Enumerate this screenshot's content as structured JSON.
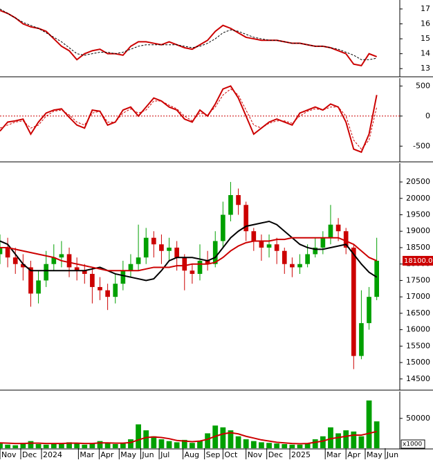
{
  "chart_data": [
    {
      "type": "line",
      "ylim": [
        12.5,
        17.6
      ],
      "yticks": [
        13,
        14,
        15,
        16,
        17
      ],
      "xlim": [
        0,
        52
      ],
      "series": [
        {
          "color": "#cc0000",
          "values": [
            16.9,
            16.7,
            16.4,
            16.0,
            15.8,
            15.7,
            15.5,
            15.0,
            14.5,
            14.2,
            13.6,
            14.0,
            14.2,
            14.3,
            14.0,
            14.0,
            13.9,
            14.5,
            14.8,
            14.8,
            14.7,
            14.6,
            14.8,
            14.6,
            14.4,
            14.3,
            14.6,
            14.9,
            15.5,
            15.9,
            15.7,
            15.4,
            15.1,
            15.0,
            14.9,
            14.9,
            14.9,
            14.8,
            14.7,
            14.7,
            14.6,
            14.5,
            14.5,
            14.4,
            14.2,
            14.0,
            13.3,
            13.2,
            14.0,
            13.8
          ]
        },
        {
          "color": "#000000",
          "dashed": true,
          "values": [
            17.0,
            16.7,
            16.4,
            16.1,
            15.9,
            15.7,
            15.4,
            15.1,
            14.8,
            14.4,
            14.0,
            13.9,
            14.0,
            14.1,
            14.1,
            14.0,
            14.1,
            14.3,
            14.5,
            14.6,
            14.6,
            14.6,
            14.6,
            14.6,
            14.5,
            14.4,
            14.5,
            14.7,
            15.0,
            15.4,
            15.6,
            15.5,
            15.3,
            15.1,
            15.0,
            14.9,
            14.9,
            14.8,
            14.7,
            14.7,
            14.6,
            14.5,
            14.5,
            14.4,
            14.3,
            14.1,
            13.9,
            13.6,
            13.6,
            13.7
          ]
        }
      ]
    },
    {
      "type": "line",
      "ylim": [
        -750,
        630
      ],
      "yticks": [
        -500,
        0,
        500
      ],
      "xlim": [
        0,
        52
      ],
      "hline": 0,
      "series": [
        {
          "color": "#cc0000",
          "values": [
            -250,
            -100,
            -80,
            -50,
            -300,
            -100,
            50,
            100,
            120,
            -20,
            -150,
            -200,
            100,
            80,
            -150,
            -100,
            100,
            150,
            0,
            150,
            300,
            250,
            150,
            100,
            -50,
            -100,
            100,
            0,
            200,
            450,
            500,
            300,
            0,
            -300,
            -200,
            -100,
            -50,
            -100,
            -150,
            50,
            100,
            150,
            100,
            200,
            150,
            -100,
            -550,
            -600,
            -300,
            350
          ]
        },
        {
          "color": "#cc0000",
          "dashed": true,
          "values": [
            -200,
            -150,
            -100,
            -80,
            -200,
            -150,
            0,
            80,
            100,
            20,
            -100,
            -150,
            50,
            80,
            -100,
            -100,
            50,
            120,
            50,
            100,
            250,
            250,
            180,
            120,
            0,
            -80,
            50,
            20,
            150,
            350,
            450,
            350,
            100,
            -150,
            -200,
            -120,
            -80,
            -80,
            -120,
            0,
            80,
            120,
            100,
            150,
            150,
            0,
            -400,
            -550,
            -400,
            150
          ]
        }
      ]
    },
    {
      "type": "candlestick",
      "ylim": [
        14180,
        21070
      ],
      "yticks": [
        14500,
        15000,
        15500,
        16000,
        16500,
        17000,
        17500,
        18000,
        18500,
        19000,
        19500,
        20000,
        20500
      ],
      "xlim": [
        0,
        52
      ],
      "up_color": "#00a000",
      "down_color": "#cc0000",
      "last_price_label": "18100.00",
      "open": [
        18300,
        18500,
        18200,
        18000,
        17900,
        17100,
        17500,
        18000,
        18200,
        18300,
        17900,
        17800,
        17700,
        17300,
        17200,
        17000,
        17400,
        17800,
        18000,
        18200,
        18800,
        18600,
        18400,
        18500,
        18200,
        17800,
        17700,
        18100,
        18000,
        18700,
        19500,
        20100,
        19800,
        19000,
        18700,
        18500,
        18600,
        18400,
        18000,
        17900,
        18000,
        18300,
        18500,
        18800,
        19200,
        19000,
        18500,
        15200,
        16200,
        17000
      ],
      "high": [
        18900,
        18800,
        18500,
        18300,
        18100,
        17800,
        18400,
        18600,
        18700,
        18500,
        18200,
        18000,
        17900,
        17600,
        17400,
        17700,
        18100,
        18300,
        19200,
        19100,
        19000,
        18900,
        18800,
        18700,
        18300,
        18000,
        18600,
        18400,
        19000,
        19900,
        20500,
        20300,
        19900,
        19100,
        18900,
        18900,
        18800,
        18500,
        18200,
        18300,
        18600,
        18800,
        19000,
        19800,
        19400,
        19100,
        18600,
        17200,
        17300,
        18800
      ],
      "low": [
        18000,
        17900,
        17700,
        17500,
        16700,
        16800,
        17300,
        17800,
        17900,
        17600,
        17500,
        17400,
        16800,
        16900,
        16600,
        16800,
        17200,
        17600,
        17800,
        18000,
        18200,
        18000,
        18100,
        17800,
        17200,
        17400,
        17500,
        17800,
        17900,
        18500,
        19300,
        19500,
        18700,
        18400,
        18100,
        18200,
        18000,
        17700,
        17600,
        17700,
        17900,
        18200,
        18300,
        18600,
        18700,
        18300,
        14800,
        15100,
        16000,
        16900
      ],
      "close": [
        18500,
        18200,
        18000,
        17900,
        17100,
        17500,
        18000,
        18200,
        18300,
        17900,
        17800,
        17700,
        17300,
        17200,
        17000,
        17400,
        17800,
        18000,
        18200,
        18800,
        18600,
        18400,
        18500,
        18200,
        17800,
        17700,
        18100,
        18000,
        18700,
        19500,
        20100,
        19800,
        19000,
        18700,
        18500,
        18600,
        18400,
        18000,
        17900,
        18000,
        18300,
        18500,
        18800,
        19200,
        19000,
        18500,
        15200,
        16200,
        17000,
        18100
      ],
      "series": [
        {
          "color": "#000000",
          "values": [
            18700,
            18600,
            18300,
            18000,
            17800,
            17800,
            17800,
            17800,
            17800,
            17800,
            17800,
            17800,
            17850,
            17900,
            17800,
            17700,
            17650,
            17600,
            17550,
            17500,
            17550,
            17800,
            18100,
            18200,
            18200,
            18200,
            18150,
            18100,
            18200,
            18500,
            18800,
            19000,
            19150,
            19200,
            19250,
            19300,
            19200,
            19000,
            18800,
            18600,
            18500,
            18450,
            18450,
            18500,
            18550,
            18600,
            18300,
            18000,
            17750,
            17600
          ]
        },
        {
          "color": "#cc0000",
          "values": [
            18500,
            18500,
            18450,
            18400,
            18350,
            18300,
            18250,
            18200,
            18100,
            18050,
            18000,
            17950,
            17900,
            17850,
            17800,
            17800,
            17800,
            17800,
            17800,
            17850,
            17900,
            17900,
            17900,
            17950,
            17950,
            18000,
            18000,
            18000,
            18050,
            18200,
            18400,
            18550,
            18650,
            18700,
            18700,
            18700,
            18750,
            18750,
            18800,
            18800,
            18800,
            18800,
            18800,
            18800,
            18800,
            18700,
            18600,
            18400,
            18200,
            18100
          ]
        }
      ]
    },
    {
      "type": "bar",
      "ylim": [
        0,
        95000
      ],
      "yticks": [
        50000
      ],
      "xlim": [
        0,
        52
      ],
      "color": "#00a000",
      "unit_label": "x1000",
      "values": [
        8000,
        6000,
        5000,
        9000,
        12000,
        7000,
        6000,
        8000,
        7000,
        10000,
        9000,
        6000,
        8000,
        12000,
        9000,
        7000,
        8000,
        15000,
        40000,
        30000,
        20000,
        15000,
        12000,
        10000,
        14000,
        9000,
        12000,
        25000,
        38000,
        35000,
        30000,
        20000,
        15000,
        12000,
        10000,
        9000,
        8000,
        7000,
        6000,
        6000,
        8000,
        15000,
        20000,
        35000,
        25000,
        30000,
        28000,
        20000,
        80000,
        45000
      ],
      "series": [
        {
          "color": "#cc0000",
          "values": [
            9000,
            8500,
            8000,
            8000,
            8500,
            8500,
            8000,
            8000,
            8000,
            8500,
            8500,
            8000,
            8000,
            9000,
            9000,
            8500,
            8500,
            9500,
            14000,
            18000,
            19000,
            18000,
            16000,
            13000,
            12000,
            11000,
            12000,
            15000,
            20000,
            24000,
            26000,
            24000,
            20000,
            17000,
            14000,
            12000,
            10000,
            9000,
            8000,
            7500,
            8000,
            10000,
            12000,
            16000,
            18000,
            20000,
            22000,
            22000,
            25000,
            28000
          ]
        }
      ],
      "xticks": [
        {
          "value": 0,
          "label": "Nov"
        },
        {
          "value": 2.7,
          "label": "Dec"
        },
        {
          "value": 5.4,
          "label": "2024"
        },
        {
          "value": 10.2,
          "label": "Mar"
        },
        {
          "value": 12.9,
          "label": "Apr"
        },
        {
          "value": 15.5,
          "label": "May"
        },
        {
          "value": 18.3,
          "label": "Jun"
        },
        {
          "value": 20.7,
          "label": "Jul"
        },
        {
          "value": 23.8,
          "label": "Aug"
        },
        {
          "value": 26.6,
          "label": "Sep"
        },
        {
          "value": 29,
          "label": "Oct"
        },
        {
          "value": 32,
          "label": "Nov"
        },
        {
          "value": 34.7,
          "label": "Dec"
        },
        {
          "value": 37.7,
          "label": "2025"
        },
        {
          "value": 42.3,
          "label": "Mar"
        },
        {
          "value": 45,
          "label": "Apr"
        },
        {
          "value": 47.5,
          "label": "May"
        },
        {
          "value": 50.1,
          "label": "Jun"
        }
      ]
    }
  ]
}
